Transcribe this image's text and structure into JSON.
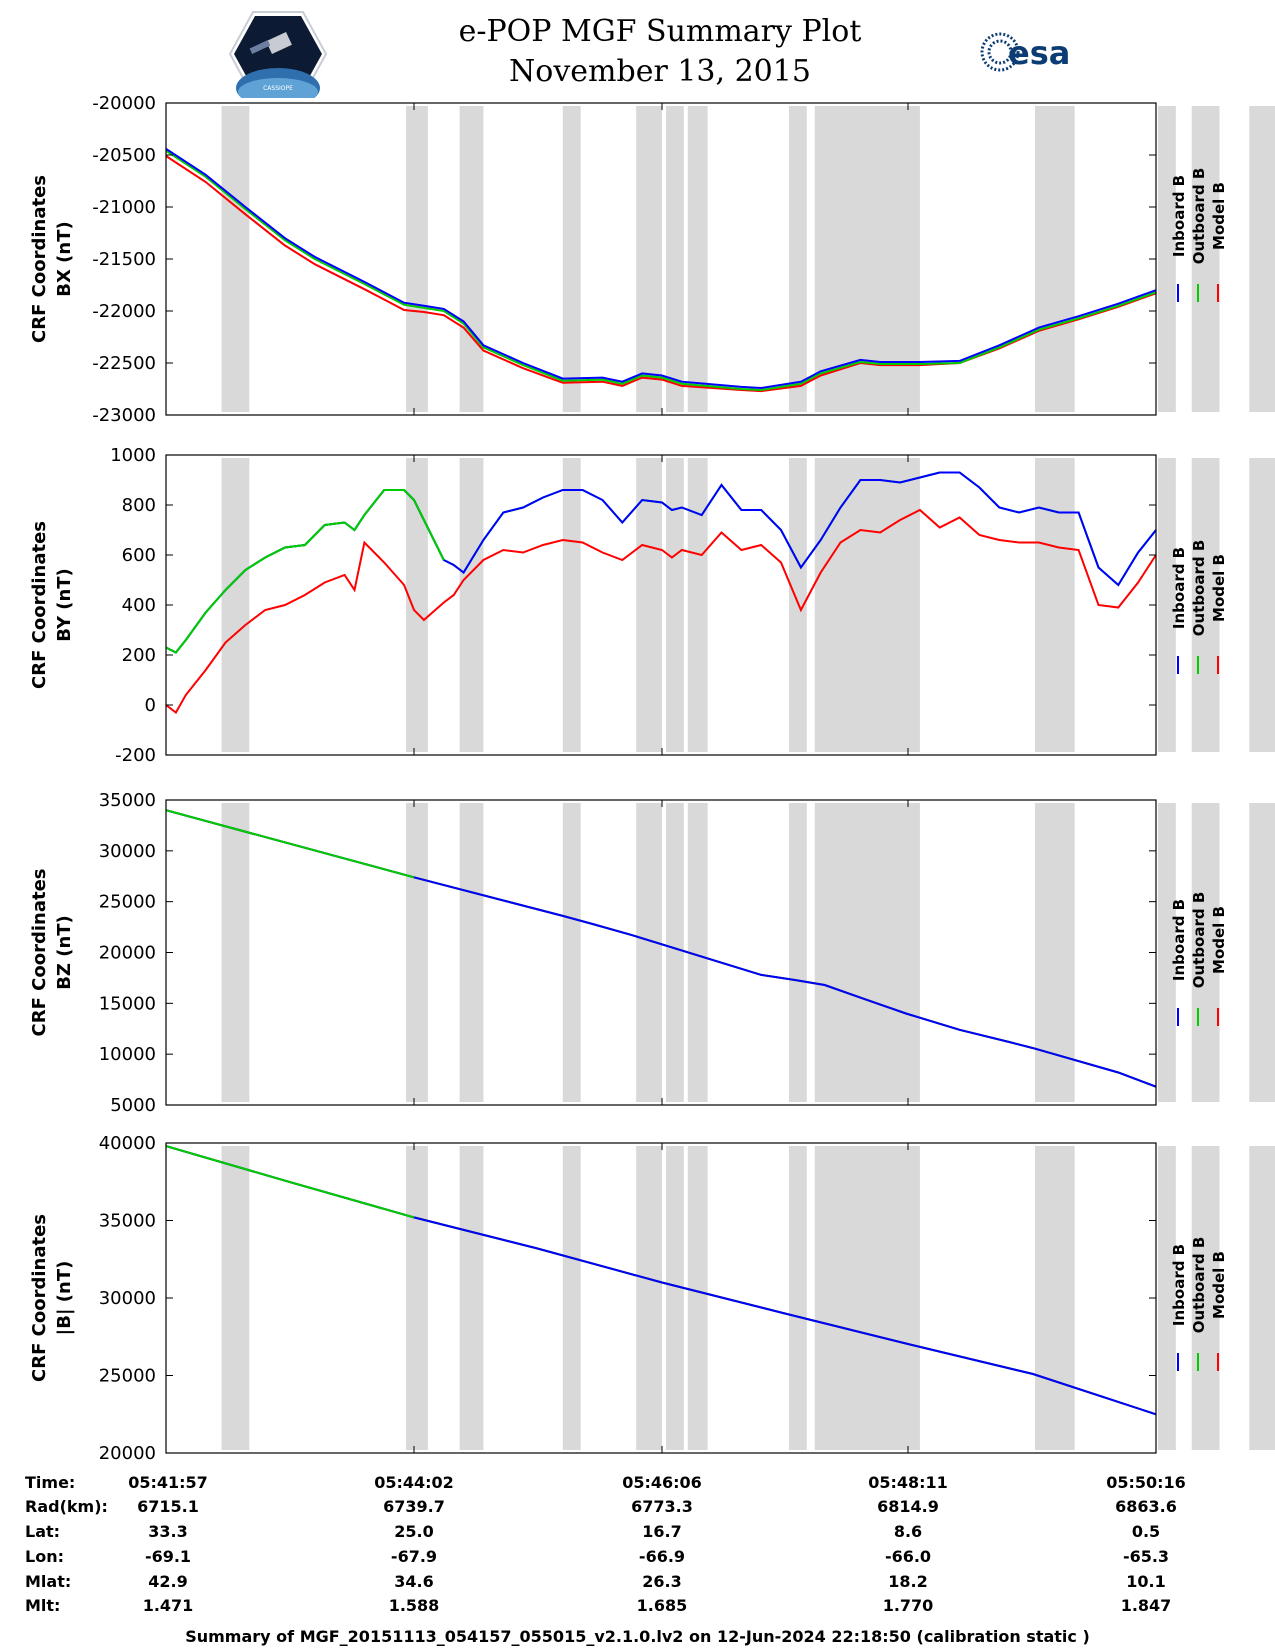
{
  "header": {
    "title": "e-POP MGF Summary Plot",
    "date": "November 13, 2015",
    "left_logo": "CASSIOPE",
    "right_logo": "esa"
  },
  "colors": {
    "inboard": "#0000ff",
    "outboard": "#00cc00",
    "model": "#ff0000",
    "shade": "#d9d9d9"
  },
  "chart_data": {
    "type": "line",
    "x_range_seconds": [
      0,
      499
    ],
    "shaded_intervals_seconds": [
      [
        28,
        42
      ],
      [
        121,
        132
      ],
      [
        148,
        160
      ],
      [
        200,
        209
      ],
      [
        237,
        250
      ],
      [
        252,
        261
      ],
      [
        263,
        273
      ],
      [
        314,
        323
      ],
      [
        327,
        380
      ],
      [
        438,
        458
      ],
      [
        500,
        509
      ],
      [
        517,
        531
      ],
      [
        546,
        562
      ]
    ],
    "legend": [
      "Inboard B",
      "Outboard B",
      "Model B"
    ],
    "panels": [
      {
        "ylabel": [
          "CRF Coordinates",
          "BX (nT)"
        ],
        "ylim": [
          -23000,
          -20000
        ],
        "yticks": [
          -20000,
          -20500,
          -21000,
          -21500,
          -22000,
          -22500,
          -23000
        ],
        "x": [
          0,
          20,
          40,
          60,
          75,
          100,
          120,
          130,
          140,
          150,
          160,
          180,
          200,
          220,
          230,
          240,
          250,
          260,
          290,
          300,
          320,
          330,
          350,
          360,
          380,
          400,
          420,
          440,
          460,
          480,
          499
        ],
        "inboard": [
          -20440,
          -20690,
          -21000,
          -21300,
          -21480,
          -21720,
          -21920,
          -21950,
          -21980,
          -22100,
          -22330,
          -22500,
          -22650,
          -22640,
          -22680,
          -22600,
          -22620,
          -22680,
          -22730,
          -22740,
          -22680,
          -22580,
          -22470,
          -22490,
          -22490,
          -22480,
          -22330,
          -22160,
          -22050,
          -21930,
          -21800
        ],
        "outboard": [
          -20460,
          -20710,
          -21020,
          -21320,
          -21500,
          -21740,
          -21940,
          -21970,
          -22000,
          -22120,
          -22350,
          -22520,
          -22670,
          -22660,
          -22700,
          -22620,
          -22640,
          -22700,
          -22750,
          -22760,
          -22700,
          -22600,
          -22490,
          -22510,
          -22510,
          -22500,
          -22350,
          -22180,
          -22070,
          -21950,
          -21820
        ],
        "model": [
          -20510,
          -20760,
          -21070,
          -21370,
          -21550,
          -21790,
          -21990,
          -22010,
          -22040,
          -22160,
          -22380,
          -22550,
          -22690,
          -22680,
          -22720,
          -22640,
          -22660,
          -22720,
          -22760,
          -22770,
          -22720,
          -22620,
          -22500,
          -22520,
          -22520,
          -22500,
          -22360,
          -22190,
          -22080,
          -21960,
          -21830
        ]
      },
      {
        "ylabel": [
          "CRF Coordinates",
          "BY (nT)"
        ],
        "ylim": [
          -200,
          1000
        ],
        "yticks": [
          1000,
          800,
          600,
          400,
          200,
          0,
          -200
        ],
        "x": [
          0,
          5,
          10,
          20,
          30,
          40,
          50,
          60,
          70,
          80,
          90,
          95,
          100,
          110,
          120,
          125,
          130,
          140,
          145,
          150,
          160,
          170,
          180,
          190,
          200,
          210,
          220,
          230,
          240,
          250,
          255,
          260,
          270,
          280,
          290,
          300,
          310,
          320,
          330,
          340,
          350,
          360,
          370,
          380,
          390,
          400,
          410,
          420,
          430,
          440,
          450,
          460,
          470,
          480,
          490,
          499
        ],
        "inboard": [
          230,
          210,
          260,
          370,
          460,
          540,
          590,
          630,
          640,
          720,
          730,
          700,
          760,
          860,
          860,
          820,
          740,
          580,
          560,
          530,
          660,
          770,
          790,
          830,
          860,
          860,
          820,
          730,
          820,
          810,
          780,
          790,
          760,
          880,
          780,
          780,
          700,
          550,
          660,
          790,
          900,
          900,
          890,
          910,
          930,
          930,
          870,
          790,
          770,
          790,
          770,
          770,
          550,
          480,
          610,
          700
        ],
        "outboard": [
          230,
          210,
          260,
          370,
          460,
          540,
          590,
          630,
          640,
          720,
          730,
          700,
          760,
          860,
          860,
          820,
          740,
          580,
          560,
          530,
          660,
          770,
          790,
          830,
          860,
          860,
          820,
          730,
          820,
          810,
          780,
          790,
          760,
          880,
          780,
          780,
          700,
          550,
          660,
          790,
          900,
          900,
          890,
          910,
          930,
          930,
          870,
          790,
          770,
          790,
          770,
          770,
          550,
          480,
          610,
          700
        ],
        "model": [
          0,
          -30,
          40,
          140,
          250,
          320,
          380,
          400,
          440,
          490,
          520,
          460,
          650,
          570,
          480,
          380,
          340,
          410,
          440,
          500,
          580,
          620,
          610,
          640,
          660,
          650,
          610,
          580,
          640,
          620,
          590,
          620,
          600,
          690,
          620,
          640,
          570,
          380,
          530,
          650,
          700,
          690,
          740,
          780,
          710,
          750,
          680,
          660,
          650,
          650,
          630,
          620,
          400,
          390,
          490,
          600
        ]
      },
      {
        "ylabel": [
          "CRF Coordinates",
          "BZ (nT)"
        ],
        "ylim": [
          5000,
          35000
        ],
        "yticks": [
          35000,
          30000,
          25000,
          20000,
          15000,
          10000,
          5000
        ],
        "x": [
          0,
          125,
          200,
          215,
          235,
          300,
          317,
          332,
          351,
          373,
          400,
          425,
          437,
          480,
          499
        ],
        "inboard": [
          34000,
          27400,
          23600,
          22800,
          21700,
          17800,
          17300,
          16800,
          15500,
          14000,
          12400,
          11200,
          10600,
          8200,
          6800
        ],
        "outboard": [
          34000,
          27400,
          23600,
          22800,
          21700,
          17800,
          17300,
          16800,
          15500,
          14000,
          12400,
          11200,
          10600,
          8200,
          6800
        ],
        "model": [
          34000,
          27400,
          23600,
          22800,
          21700,
          17800,
          17300,
          16800,
          15500,
          14000,
          12400,
          11200,
          10600,
          8200,
          6800
        ]
      },
      {
        "ylabel": [
          "CRF Coordinates",
          "|B| (nT)"
        ],
        "ylim": [
          20000,
          40000
        ],
        "yticks": [
          40000,
          35000,
          30000,
          25000,
          20000
        ],
        "x": [
          0,
          62,
          125,
          187,
          250,
          312,
          375,
          437,
          499
        ],
        "inboard": [
          39800,
          37500,
          35200,
          33200,
          31000,
          29000,
          27000,
          25100,
          22500
        ],
        "outboard": [
          39800,
          37500,
          35200,
          33200,
          31000,
          29000,
          27000,
          25100,
          22500
        ],
        "model": [
          39800,
          37500,
          35200,
          33200,
          31000,
          29000,
          27000,
          25100,
          22500
        ]
      }
    ]
  },
  "ephemeris": {
    "labels": [
      "Time:",
      "Rad(km):",
      "Lat:",
      "Lon:",
      "Mlat:",
      "Mlt:"
    ],
    "columns": [
      [
        "05:41:57",
        "6715.1",
        "33.3",
        "-69.1",
        "42.9",
        "1.471"
      ],
      [
        "05:44:02",
        "6739.7",
        "25.0",
        "-67.9",
        "34.6",
        "1.588"
      ],
      [
        "05:46:06",
        "6773.3",
        "16.7",
        "-66.9",
        "26.3",
        "1.685"
      ],
      [
        "05:48:11",
        "6814.9",
        "8.6",
        "-66.0",
        "18.2",
        "1.770"
      ],
      [
        "05:50:16",
        "6863.6",
        "0.5",
        "-65.3",
        "10.1",
        "1.847"
      ]
    ]
  },
  "footer": "Summary of MGF_20151113_054157_055015_v2.1.0.lv2 on 12-Jun-2024 22:18:50 (calibration static )"
}
